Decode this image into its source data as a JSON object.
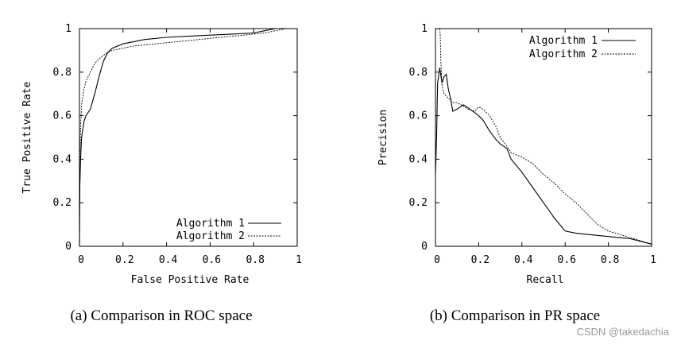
{
  "chart_data": [
    {
      "type": "line",
      "title": "",
      "xlabel": "False Positive Rate",
      "ylabel": "True Positive Rate",
      "xlim": [
        0,
        1
      ],
      "ylim": [
        0,
        1
      ],
      "x_ticks": [
        "0",
        "0.2",
        "0.4",
        "0.6",
        "0.8",
        "1"
      ],
      "y_ticks": [
        "0",
        "0.2",
        "0.4",
        "0.6",
        "0.8",
        "1"
      ],
      "legend_position": "bottom-right",
      "caption": "(a) Comparison in ROC space",
      "series": [
        {
          "name": "Algorithm 1",
          "style": "solid",
          "x": [
            0,
            0.002,
            0.005,
            0.01,
            0.02,
            0.03,
            0.05,
            0.07,
            0.09,
            0.11,
            0.13,
            0.15,
            0.2,
            0.25,
            0.3,
            0.4,
            0.5,
            0.6,
            0.7,
            0.8,
            0.85,
            0.9,
            0.95,
            1
          ],
          "y": [
            0,
            0.28,
            0.4,
            0.5,
            0.57,
            0.6,
            0.63,
            0.7,
            0.78,
            0.85,
            0.89,
            0.91,
            0.93,
            0.94,
            0.95,
            0.96,
            0.965,
            0.97,
            0.975,
            0.98,
            0.99,
            1,
            1,
            1
          ]
        },
        {
          "name": "Algorithm 2",
          "style": "dashed",
          "x": [
            0,
            0.002,
            0.005,
            0.01,
            0.02,
            0.03,
            0.05,
            0.07,
            0.1,
            0.13,
            0.15,
            0.2,
            0.25,
            0.3,
            0.4,
            0.5,
            0.6,
            0.7,
            0.8,
            0.85,
            0.9,
            0.95,
            1
          ],
          "y": [
            0,
            0.4,
            0.55,
            0.65,
            0.72,
            0.76,
            0.8,
            0.84,
            0.87,
            0.89,
            0.9,
            0.91,
            0.92,
            0.925,
            0.935,
            0.945,
            0.955,
            0.965,
            0.975,
            0.98,
            0.99,
            1,
            1
          ]
        }
      ]
    },
    {
      "type": "line",
      "title": "",
      "xlabel": "Recall",
      "ylabel": "Precision",
      "xlim": [
        0,
        1
      ],
      "ylim": [
        0,
        1
      ],
      "x_ticks": [
        "0",
        "0.2",
        "0.4",
        "0.6",
        "0.8",
        "1"
      ],
      "y_ticks": [
        "0",
        "0.2",
        "0.4",
        "0.6",
        "0.8",
        "1"
      ],
      "legend_position": "top-right",
      "caption": "(b) Comparison in PR space",
      "series": [
        {
          "name": "Algorithm 1",
          "style": "solid",
          "x": [
            0,
            0.005,
            0.01,
            0.02,
            0.03,
            0.04,
            0.05,
            0.06,
            0.07,
            0.08,
            0.1,
            0.13,
            0.16,
            0.2,
            0.22,
            0.25,
            0.28,
            0.3,
            0.33,
            0.35,
            0.4,
            0.45,
            0.5,
            0.55,
            0.6,
            0.65,
            0.7,
            0.8,
            0.9,
            1
          ],
          "y": [
            0.33,
            0.5,
            0.75,
            0.82,
            0.75,
            0.78,
            0.79,
            0.72,
            0.68,
            0.62,
            0.63,
            0.65,
            0.63,
            0.6,
            0.58,
            0.53,
            0.49,
            0.47,
            0.45,
            0.4,
            0.34,
            0.27,
            0.2,
            0.13,
            0.07,
            0.06,
            0.055,
            0.045,
            0.035,
            0.01
          ]
        },
        {
          "name": "Algorithm 2",
          "style": "dashed",
          "x": [
            0.02,
            0.022,
            0.025,
            0.03,
            0.04,
            0.06,
            0.08,
            0.1,
            0.12,
            0.15,
            0.18,
            0.2,
            0.22,
            0.25,
            0.28,
            0.3,
            0.33,
            0.35,
            0.4,
            0.45,
            0.5,
            0.55,
            0.6,
            0.65,
            0.7,
            0.75,
            0.8,
            0.85,
            0.9,
            0.95,
            1
          ],
          "y": [
            1,
            0.97,
            0.85,
            0.74,
            0.7,
            0.68,
            0.66,
            0.66,
            0.65,
            0.63,
            0.62,
            0.64,
            0.63,
            0.6,
            0.55,
            0.5,
            0.46,
            0.43,
            0.41,
            0.38,
            0.33,
            0.29,
            0.24,
            0.2,
            0.15,
            0.1,
            0.07,
            0.055,
            0.04,
            0.025,
            0.01
          ]
        }
      ]
    }
  ],
  "watermark": "CSDN @takedachia"
}
